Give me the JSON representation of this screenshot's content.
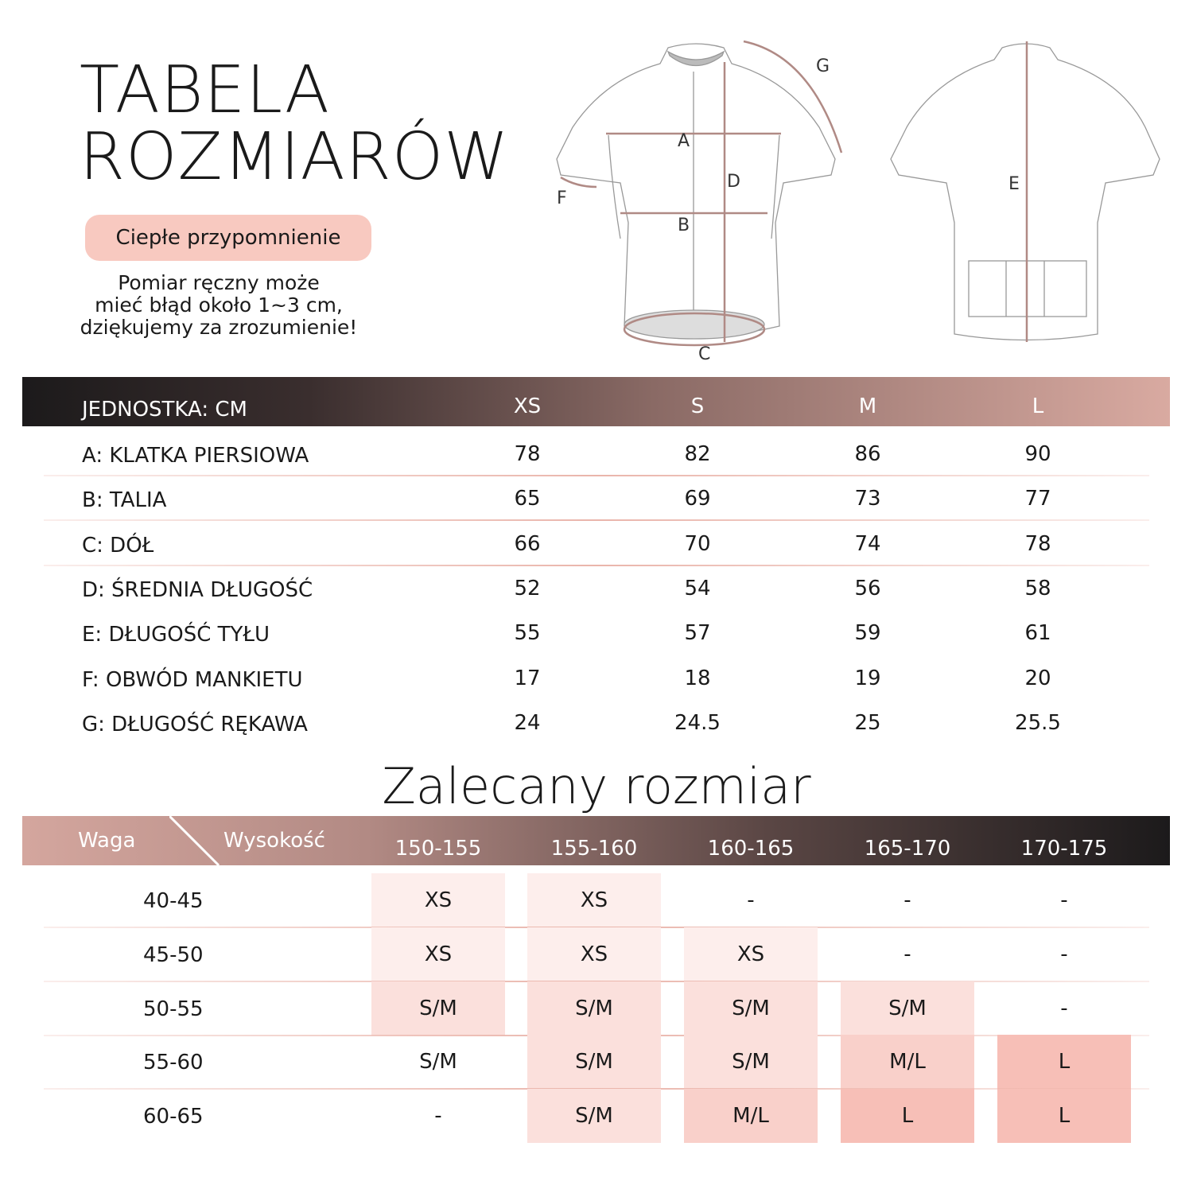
{
  "header": {
    "title_line1": "TABELA",
    "title_line2": "ROZMIARÓW",
    "reminder_label": "Ciepłe przypomnienie",
    "note_lines": [
      "Pomiar ręczny może",
      "mieć błąd około 1~3 cm,",
      "dziękujemy za zrozumienie!"
    ]
  },
  "diagram": {
    "labels": [
      "A",
      "B",
      "C",
      "D",
      "E",
      "F",
      "G"
    ],
    "line_color": "#b08a85"
  },
  "size_table": {
    "unit_label": "JEDNOSTKA: CM",
    "sizes": [
      "XS",
      "S",
      "M",
      "L"
    ],
    "rows": [
      {
        "label": "A: KLATKA PIERSIOWA",
        "values": [
          "78",
          "82",
          "86",
          "90"
        ]
      },
      {
        "label": "B: TALIA",
        "values": [
          "65",
          "69",
          "73",
          "77"
        ]
      },
      {
        "label": "C: DÓŁ",
        "values": [
          "66",
          "70",
          "74",
          "78"
        ]
      },
      {
        "label": "D: ŚREDNIA DŁUGOŚĆ",
        "values": [
          "52",
          "54",
          "56",
          "58"
        ]
      },
      {
        "label": "E: DŁUGOŚĆ TYŁU",
        "values": [
          "55",
          "57",
          "59",
          "61"
        ]
      },
      {
        "label": "F: OBWÓD MANKIETU",
        "values": [
          "17",
          "18",
          "19",
          "20"
        ]
      },
      {
        "label": "G: DŁUGOŚĆ RĘKAWA",
        "values": [
          "24",
          "24.5",
          "25",
          "25.5"
        ]
      }
    ]
  },
  "recommend": {
    "title": "Zalecany rozmiar",
    "weight_label": "Waga",
    "height_label": "Wysokość",
    "heights": [
      "150-155",
      "155-160",
      "160-165",
      "165-170",
      "170-175"
    ],
    "rows": [
      {
        "weight": "40-45",
        "values": [
          "XS",
          "XS",
          "-",
          "-",
          "-"
        ]
      },
      {
        "weight": "45-50",
        "values": [
          "XS",
          "XS",
          "XS",
          "-",
          "-"
        ]
      },
      {
        "weight": "50-55",
        "values": [
          "S/M",
          "S/M",
          "S/M",
          "S/M",
          "-"
        ]
      },
      {
        "weight": "55-60",
        "values": [
          "S/M",
          "S/M",
          "S/M",
          "M/L",
          "L"
        ]
      },
      {
        "weight": "60-65",
        "values": [
          "-",
          "S/M",
          "M/L",
          "L",
          "L"
        ]
      }
    ],
    "highlight_colors": {
      "XS": "#fdeeec",
      "S/M": "#fbe0dc",
      "M/L": "#f9d0ca",
      "L": "#f7bfb7"
    }
  },
  "colors": {
    "accent_pink": "#f8c9c0",
    "dark": "#1c1a1b"
  }
}
